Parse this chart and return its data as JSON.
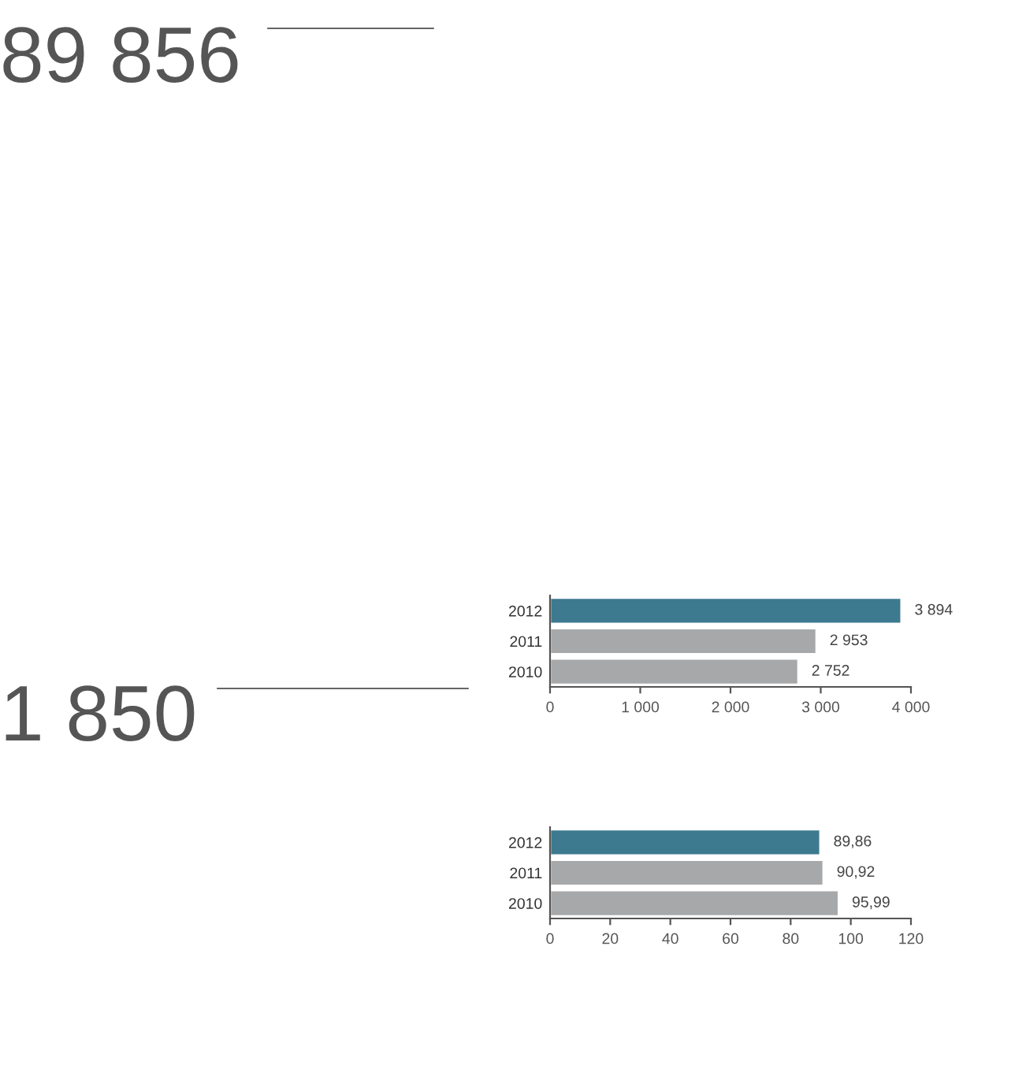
{
  "chart_data": [
    {
      "type": "other",
      "title": "89 856"
    },
    {
      "type": "other",
      "title": "1 850"
    },
    {
      "type": "bar",
      "orientation": "horizontal",
      "categories": [
        "2012",
        "2011",
        "2010"
      ],
      "values": [
        3894,
        2953,
        2752
      ],
      "colors": [
        "#3d7a90",
        "#a7a8aa",
        "#a7a8aa"
      ],
      "value_labels": [
        "3 894",
        "2 953",
        "2 752"
      ],
      "xlim": [
        0,
        4000
      ],
      "xticks": [
        0,
        {
          "value": 1000,
          "label": "1 000"
        },
        {
          "value": 2000,
          "label": "2 000"
        },
        {
          "value": 3000,
          "label": "3 000"
        },
        {
          "value": 4000,
          "label": "4 000"
        }
      ],
      "grid": false,
      "legend": false
    },
    {
      "type": "bar",
      "orientation": "horizontal",
      "categories": [
        "2012",
        "2011",
        "2010"
      ],
      "values": [
        89.86,
        90.92,
        95.99
      ],
      "colors": [
        "#3d7a90",
        "#a7a8aa",
        "#a7a8aa"
      ],
      "value_labels": [
        "89,86",
        "90,92",
        "95,99"
      ],
      "xlim": [
        0,
        120
      ],
      "xticks": [
        0,
        20,
        40,
        60,
        80,
        100,
        120
      ],
      "grid": false,
      "legend": false
    }
  ]
}
